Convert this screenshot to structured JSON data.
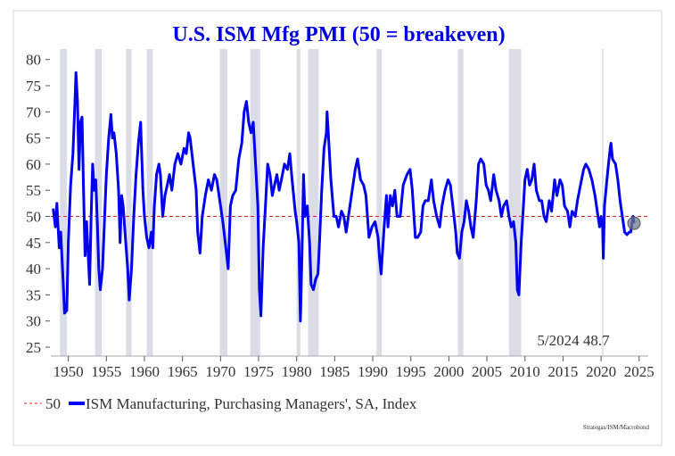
{
  "chart_data": {
    "type": "line",
    "title": "U.S. ISM Mfg PMI (50 = breakeven)",
    "xlabel": "",
    "ylabel": "",
    "xlim": [
      1947.7,
      2026.2
    ],
    "ylim": [
      23.3,
      82
    ],
    "yticks": [
      25,
      30,
      35,
      40,
      45,
      50,
      55,
      60,
      65,
      70,
      75,
      80
    ],
    "xticks": [
      1950,
      1955,
      1960,
      1965,
      1970,
      1975,
      1980,
      1985,
      1990,
      1995,
      2000,
      2005,
      2010,
      2015,
      2020,
      2025
    ],
    "grid": false,
    "legend_placement": "bottom-left",
    "reference_line": {
      "name": "50",
      "value": 50,
      "color": "#e02020"
    },
    "series": [
      {
        "name": "ISM Manufacturing, Purchasing Managers', SA, Index",
        "color": "#0000ee",
        "points": [
          [
            1948.0,
            51.5
          ],
          [
            1948.3,
            48
          ],
          [
            1948.5,
            52.5
          ],
          [
            1948.8,
            44
          ],
          [
            1949.0,
            47
          ],
          [
            1949.3,
            38
          ],
          [
            1949.5,
            31.5
          ],
          [
            1949.8,
            32
          ],
          [
            1950.0,
            45
          ],
          [
            1950.3,
            56
          ],
          [
            1950.6,
            62
          ],
          [
            1950.9,
            73
          ],
          [
            1951.0,
            77.5
          ],
          [
            1951.2,
            72
          ],
          [
            1951.4,
            59
          ],
          [
            1951.6,
            68
          ],
          [
            1951.8,
            69
          ],
          [
            1952.0,
            55
          ],
          [
            1952.2,
            42.5
          ],
          [
            1952.4,
            49
          ],
          [
            1952.6,
            43
          ],
          [
            1952.8,
            37
          ],
          [
            1953.0,
            50
          ],
          [
            1953.2,
            60
          ],
          [
            1953.4,
            55
          ],
          [
            1953.6,
            57
          ],
          [
            1953.8,
            49
          ],
          [
            1954.0,
            40
          ],
          [
            1954.2,
            36
          ],
          [
            1954.5,
            40
          ],
          [
            1954.8,
            51
          ],
          [
            1955.0,
            58
          ],
          [
            1955.3,
            65
          ],
          [
            1955.6,
            69.5
          ],
          [
            1955.8,
            65
          ],
          [
            1956.0,
            66
          ],
          [
            1956.3,
            62
          ],
          [
            1956.6,
            55
          ],
          [
            1956.8,
            45
          ],
          [
            1957.0,
            54
          ],
          [
            1957.2,
            52
          ],
          [
            1957.5,
            46
          ],
          [
            1957.8,
            40
          ],
          [
            1958.0,
            34
          ],
          [
            1958.3,
            40
          ],
          [
            1958.6,
            50
          ],
          [
            1958.9,
            58
          ],
          [
            1959.2,
            64
          ],
          [
            1959.5,
            68
          ],
          [
            1959.8,
            55
          ],
          [
            1960.0,
            50
          ],
          [
            1960.3,
            46
          ],
          [
            1960.6,
            44
          ],
          [
            1960.9,
            47
          ],
          [
            1961.1,
            44
          ],
          [
            1961.3,
            52
          ],
          [
            1961.6,
            58
          ],
          [
            1961.9,
            60
          ],
          [
            1962.1,
            58
          ],
          [
            1962.4,
            50
          ],
          [
            1962.7,
            54
          ],
          [
            1963.0,
            56
          ],
          [
            1963.3,
            58
          ],
          [
            1963.6,
            55
          ],
          [
            1964.0,
            60
          ],
          [
            1964.4,
            62
          ],
          [
            1964.8,
            60
          ],
          [
            1965.2,
            63
          ],
          [
            1965.5,
            62
          ],
          [
            1965.8,
            66
          ],
          [
            1966.0,
            65
          ],
          [
            1966.4,
            60
          ],
          [
            1966.8,
            55
          ],
          [
            1967.0,
            47
          ],
          [
            1967.3,
            43
          ],
          [
            1967.6,
            50
          ],
          [
            1968.0,
            54
          ],
          [
            1968.4,
            57
          ],
          [
            1968.8,
            55
          ],
          [
            1969.2,
            58
          ],
          [
            1969.5,
            57
          ],
          [
            1969.9,
            53
          ],
          [
            1970.3,
            49
          ],
          [
            1970.7,
            44
          ],
          [
            1971.0,
            40
          ],
          [
            1971.3,
            52
          ],
          [
            1971.6,
            54
          ],
          [
            1972.0,
            55
          ],
          [
            1972.4,
            61
          ],
          [
            1972.8,
            64
          ],
          [
            1973.1,
            70
          ],
          [
            1973.4,
            72
          ],
          [
            1973.7,
            68
          ],
          [
            1974.0,
            66
          ],
          [
            1974.3,
            68
          ],
          [
            1974.6,
            60
          ],
          [
            1974.9,
            52
          ],
          [
            1975.1,
            36
          ],
          [
            1975.3,
            31
          ],
          [
            1975.6,
            44
          ],
          [
            1975.9,
            52
          ],
          [
            1976.2,
            60
          ],
          [
            1976.5,
            58
          ],
          [
            1976.8,
            54
          ],
          [
            1977.1,
            56
          ],
          [
            1977.4,
            58
          ],
          [
            1977.7,
            55
          ],
          [
            1978.0,
            57
          ],
          [
            1978.4,
            60
          ],
          [
            1978.8,
            59
          ],
          [
            1979.1,
            62
          ],
          [
            1979.4,
            57
          ],
          [
            1979.8,
            51
          ],
          [
            1980.0,
            49
          ],
          [
            1980.3,
            45
          ],
          [
            1980.5,
            30
          ],
          [
            1980.7,
            43
          ],
          [
            1980.9,
            58
          ],
          [
            1981.1,
            50
          ],
          [
            1981.4,
            52
          ],
          [
            1981.7,
            45
          ],
          [
            1981.9,
            37
          ],
          [
            1982.2,
            36
          ],
          [
            1982.5,
            38
          ],
          [
            1982.8,
            39
          ],
          [
            1983.0,
            45
          ],
          [
            1983.3,
            55
          ],
          [
            1983.6,
            63
          ],
          [
            1983.9,
            66
          ],
          [
            1984.0,
            70
          ],
          [
            1984.2,
            65
          ],
          [
            1984.5,
            57
          ],
          [
            1984.9,
            50
          ],
          [
            1985.2,
            50
          ],
          [
            1985.5,
            48
          ],
          [
            1985.9,
            51
          ],
          [
            1986.2,
            50
          ],
          [
            1986.5,
            47
          ],
          [
            1986.9,
            51
          ],
          [
            1987.3,
            55
          ],
          [
            1987.7,
            59
          ],
          [
            1988.0,
            61
          ],
          [
            1988.4,
            57
          ],
          [
            1988.8,
            56
          ],
          [
            1989.1,
            54
          ],
          [
            1989.5,
            46
          ],
          [
            1989.9,
            48
          ],
          [
            1990.3,
            49
          ],
          [
            1990.7,
            46
          ],
          [
            1990.9,
            42
          ],
          [
            1991.1,
            39
          ],
          [
            1991.5,
            48
          ],
          [
            1991.8,
            54
          ],
          [
            1992.0,
            48
          ],
          [
            1992.3,
            54
          ],
          [
            1992.6,
            52
          ],
          [
            1992.9,
            55
          ],
          [
            1993.2,
            50
          ],
          [
            1993.6,
            50
          ],
          [
            1994.0,
            56
          ],
          [
            1994.5,
            58
          ],
          [
            1994.9,
            59
          ],
          [
            1995.2,
            55
          ],
          [
            1995.6,
            46
          ],
          [
            1995.9,
            46
          ],
          [
            1996.3,
            47
          ],
          [
            1996.6,
            52
          ],
          [
            1996.9,
            53
          ],
          [
            1997.3,
            53
          ],
          [
            1997.7,
            57
          ],
          [
            1998.0,
            53
          ],
          [
            1998.4,
            50
          ],
          [
            1998.8,
            48
          ],
          [
            1999.1,
            52
          ],
          [
            1999.5,
            55
          ],
          [
            1999.9,
            57
          ],
          [
            2000.2,
            56
          ],
          [
            2000.6,
            51
          ],
          [
            2000.9,
            47
          ],
          [
            2001.1,
            43
          ],
          [
            2001.4,
            42
          ],
          [
            2001.7,
            47
          ],
          [
            2002.0,
            49
          ],
          [
            2002.3,
            53
          ],
          [
            2002.6,
            51
          ],
          [
            2002.9,
            48
          ],
          [
            2003.2,
            46
          ],
          [
            2003.6,
            53
          ],
          [
            2003.9,
            60
          ],
          [
            2004.2,
            61
          ],
          [
            2004.6,
            60
          ],
          [
            2004.9,
            56
          ],
          [
            2005.2,
            55
          ],
          [
            2005.5,
            53
          ],
          [
            2005.9,
            58
          ],
          [
            2006.2,
            55
          ],
          [
            2006.6,
            53
          ],
          [
            2006.9,
            50
          ],
          [
            2007.2,
            52
          ],
          [
            2007.6,
            53
          ],
          [
            2007.9,
            50
          ],
          [
            2008.2,
            48
          ],
          [
            2008.5,
            49
          ],
          [
            2008.8,
            45
          ],
          [
            2009.0,
            36
          ],
          [
            2009.2,
            35
          ],
          [
            2009.5,
            45
          ],
          [
            2009.8,
            52
          ],
          [
            2010.0,
            57
          ],
          [
            2010.3,
            59
          ],
          [
            2010.6,
            56
          ],
          [
            2010.9,
            57
          ],
          [
            2011.2,
            60
          ],
          [
            2011.5,
            55
          ],
          [
            2011.9,
            53
          ],
          [
            2012.2,
            53
          ],
          [
            2012.5,
            50
          ],
          [
            2012.8,
            49
          ],
          [
            2013.2,
            53
          ],
          [
            2013.5,
            51
          ],
          [
            2013.9,
            57
          ],
          [
            2014.2,
            54
          ],
          [
            2014.6,
            57
          ],
          [
            2014.9,
            56
          ],
          [
            2015.2,
            52
          ],
          [
            2015.6,
            51
          ],
          [
            2015.9,
            48
          ],
          [
            2016.2,
            51
          ],
          [
            2016.6,
            50
          ],
          [
            2016.9,
            53
          ],
          [
            2017.3,
            56
          ],
          [
            2017.7,
            59
          ],
          [
            2018.0,
            60
          ],
          [
            2018.4,
            59
          ],
          [
            2018.8,
            57
          ],
          [
            2019.2,
            54
          ],
          [
            2019.5,
            51
          ],
          [
            2019.8,
            48
          ],
          [
            2020.0,
            50
          ],
          [
            2020.2,
            48
          ],
          [
            2020.3,
            42
          ],
          [
            2020.45,
            52
          ],
          [
            2020.7,
            56
          ],
          [
            2020.9,
            59
          ],
          [
            2021.2,
            63
          ],
          [
            2021.3,
            64
          ],
          [
            2021.5,
            61
          ],
          [
            2021.9,
            60
          ],
          [
            2022.2,
            57
          ],
          [
            2022.5,
            53
          ],
          [
            2022.9,
            49
          ],
          [
            2023.1,
            47
          ],
          [
            2023.4,
            46.5
          ],
          [
            2023.7,
            47
          ],
          [
            2023.9,
            47
          ],
          [
            2024.2,
            50
          ],
          [
            2024.33,
            48.7
          ]
        ]
      }
    ],
    "recessions": [
      [
        1948.9,
        1949.8
      ],
      [
        1953.5,
        1954.4
      ],
      [
        1957.6,
        1958.3
      ],
      [
        1960.3,
        1961.1
      ],
      [
        1969.9,
        1970.9
      ],
      [
        1973.9,
        1975.2
      ],
      [
        1980.0,
        1980.5
      ],
      [
        1981.5,
        1982.9
      ],
      [
        1990.5,
        1991.2
      ],
      [
        2001.2,
        2001.9
      ],
      [
        2007.9,
        2009.5
      ],
      [
        2020.1,
        2020.3
      ]
    ],
    "recession_color": "#dadde5",
    "last_point": {
      "x": 2024.33,
      "y": 48.7
    },
    "annotation": "5/2024 48.7",
    "legend": {
      "ref_label": "50",
      "series_label": "ISM Manufacturing, Purchasing Managers', SA, Index"
    },
    "source": "Strategas/ISM/Macrobond"
  }
}
